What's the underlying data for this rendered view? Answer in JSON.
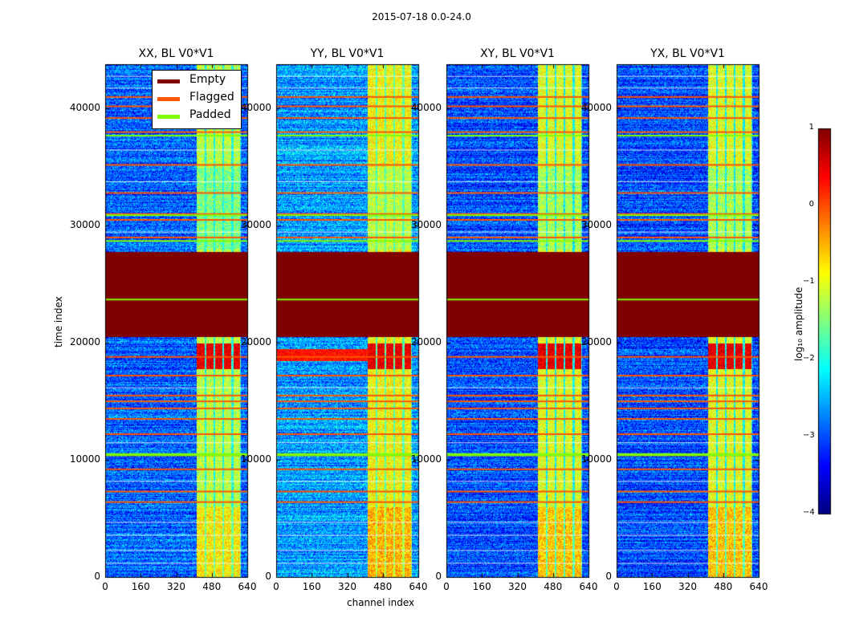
{
  "suptitle": "2015-07-18 0.0-24.0",
  "panels": [
    {
      "title": "XX, BL V0*V1",
      "pol": "XX"
    },
    {
      "title": "YY, BL V0*V1",
      "pol": "YY"
    },
    {
      "title": "XY, BL V0*V1",
      "pol": "XY"
    },
    {
      "title": "YX, BL V0*V1",
      "pol": "YX"
    }
  ],
  "xlabel": "channel index",
  "ylabel": "time index",
  "x_ticks": [
    "0",
    "160",
    "320",
    "480",
    "640"
  ],
  "y_ticks": [
    "0",
    "10000",
    "20000",
    "30000",
    "40000"
  ],
  "legend": [
    {
      "label": "Empty",
      "color": "#800000"
    },
    {
      "label": "Flagged",
      "color": "#ff5500"
    },
    {
      "label": "Padded",
      "color": "#7fff00"
    }
  ],
  "colorbar": {
    "label": "log₁₀ amplitude",
    "ticks": [
      "1",
      "0",
      "−1",
      "−2",
      "−3",
      "−4"
    ],
    "range": [
      -4,
      1
    ],
    "colormap": "jet"
  },
  "chart_data": {
    "type": "heatmap",
    "title": "2015-07-18 0.0-24.0",
    "xlabel": "channel index",
    "ylabel": "time index",
    "xlim": [
      0,
      640
    ],
    "ylim": [
      0,
      43800
    ],
    "value_label": "log10 amplitude",
    "value_range": [
      -4,
      1
    ],
    "series": [
      {
        "name": "XX, BL V0*V1",
        "typical_background": -2.9,
        "signal_band_level": -1.2
      },
      {
        "name": "YY, BL V0*V1",
        "typical_background": -2.6,
        "signal_band_level": -0.9
      },
      {
        "name": "XY, BL V0*V1",
        "typical_background": -3.0,
        "signal_band_level": -1.0
      },
      {
        "name": "YX, BL V0*V1",
        "typical_background": -3.0,
        "signal_band_level": -1.0
      }
    ],
    "empty_region": [
      20500,
      27800
    ],
    "signal_band_channels": [
      410,
      610
    ],
    "signal_columns": [
      [
        410,
        445
      ],
      [
        455,
        485
      ],
      [
        495,
        525
      ],
      [
        535,
        565
      ],
      [
        575,
        605
      ]
    ],
    "strong_signal_rows": [
      17800,
      20000
    ],
    "flagged_rows": [
      6400,
      7300,
      9200,
      10400,
      12200,
      13500,
      14400,
      15000,
      15500,
      17200,
      18800,
      29000,
      30500,
      31000,
      32800,
      35200,
      38000,
      39200,
      40200,
      41000
    ],
    "padded_rows": [
      10400,
      10500,
      28700,
      23700,
      37700,
      30900
    ]
  }
}
